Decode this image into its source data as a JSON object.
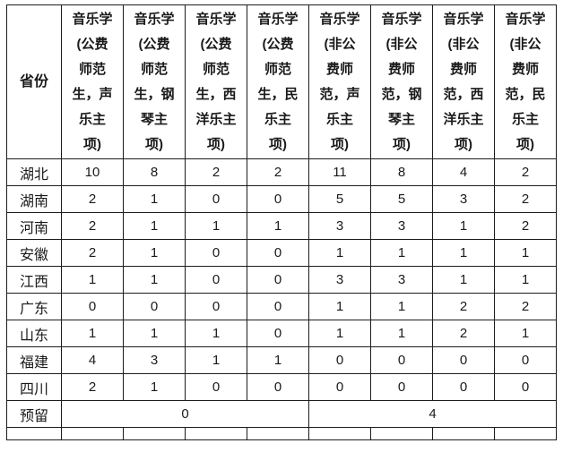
{
  "page": {
    "background": "#ffffff",
    "border_color": "#1c1c1c",
    "text_color": "#1a1a1a"
  },
  "table": {
    "corner_label": "省份",
    "columns": [
      "音乐学\n(公费\n师范\n生，声\n乐主\n项)",
      "音乐学\n(公费\n师范\n生，钢\n琴主\n项)",
      "音乐学\n(公费\n师范\n生，西\n洋乐主\n项)",
      "音乐学\n(公费\n师范\n生，民\n乐主\n项)",
      "音乐学\n(非公\n费师\n范，声\n乐主\n项)",
      "音乐学\n(非公\n费师\n范，钢\n琴主\n项)",
      "音乐学\n(非公\n费师\n范，西\n洋乐主\n项)",
      "音乐学\n(非公\n费师\n范，民\n乐主\n项)"
    ],
    "rows": [
      {
        "province": "湖北",
        "values": [
          10,
          8,
          2,
          2,
          11,
          8,
          4,
          2
        ]
      },
      {
        "province": "湖南",
        "values": [
          2,
          1,
          0,
          0,
          5,
          5,
          3,
          2
        ]
      },
      {
        "province": "河南",
        "values": [
          2,
          1,
          1,
          1,
          3,
          3,
          1,
          2
        ]
      },
      {
        "province": "安徽",
        "values": [
          2,
          1,
          0,
          0,
          1,
          1,
          1,
          1
        ]
      },
      {
        "province": "江西",
        "values": [
          1,
          1,
          0,
          0,
          3,
          3,
          1,
          1
        ]
      },
      {
        "province": "广东",
        "values": [
          0,
          0,
          0,
          0,
          1,
          1,
          2,
          2
        ]
      },
      {
        "province": "山东",
        "values": [
          1,
          1,
          1,
          0,
          1,
          1,
          2,
          1
        ]
      },
      {
        "province": "福建",
        "values": [
          4,
          3,
          1,
          1,
          0,
          0,
          0,
          0
        ]
      },
      {
        "province": "四川",
        "values": [
          2,
          1,
          0,
          0,
          0,
          0,
          0,
          0
        ]
      }
    ],
    "reserved_row": {
      "label": "预留",
      "public_value": "0",
      "non_public_value": "4"
    }
  }
}
